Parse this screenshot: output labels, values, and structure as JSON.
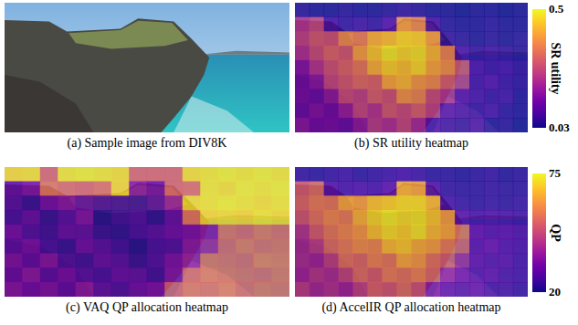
{
  "image": {
    "caption": "(a) Sample image from DIV8K"
  },
  "chart_data": [
    {
      "type": "heatmap",
      "title": "(b) SR utility heatmap",
      "tick_labels": false,
      "cells": [
        [
          0.05,
          0.04,
          0.04,
          0.05,
          0.04,
          0.04,
          0.05,
          0.06,
          0.05,
          0.04,
          0.04,
          0.03,
          0.04,
          0.04,
          0.03,
          0.04
        ],
        [
          0.22,
          0.25,
          0.08,
          0.06,
          0.07,
          0.06,
          0.09,
          0.38,
          0.35,
          0.08,
          0.05,
          0.04,
          0.04,
          0.05,
          0.04,
          0.04
        ],
        [
          0.24,
          0.28,
          0.27,
          0.36,
          0.33,
          0.4,
          0.42,
          0.45,
          0.44,
          0.38,
          0.06,
          0.05,
          0.04,
          0.05,
          0.04,
          0.05
        ],
        [
          0.21,
          0.26,
          0.3,
          0.28,
          0.39,
          0.44,
          0.48,
          0.46,
          0.47,
          0.42,
          0.35,
          0.08,
          0.06,
          0.07,
          0.06,
          0.05
        ],
        [
          0.15,
          0.22,
          0.27,
          0.3,
          0.33,
          0.41,
          0.45,
          0.43,
          0.46,
          0.4,
          0.37,
          0.28,
          0.1,
          0.08,
          0.09,
          0.07
        ],
        [
          0.13,
          0.16,
          0.25,
          0.28,
          0.31,
          0.3,
          0.4,
          0.42,
          0.38,
          0.36,
          0.29,
          0.24,
          0.09,
          0.11,
          0.08,
          0.07
        ],
        [
          0.14,
          0.12,
          0.17,
          0.26,
          0.24,
          0.29,
          0.27,
          0.37,
          0.35,
          0.26,
          0.22,
          0.12,
          0.1,
          0.08,
          0.09,
          0.06
        ],
        [
          0.12,
          0.15,
          0.13,
          0.18,
          0.25,
          0.22,
          0.28,
          0.26,
          0.29,
          0.24,
          0.11,
          0.09,
          0.08,
          0.1,
          0.07,
          0.06
        ],
        [
          0.16,
          0.13,
          0.14,
          0.12,
          0.17,
          0.23,
          0.21,
          0.25,
          0.2,
          0.1,
          0.08,
          0.07,
          0.09,
          0.06,
          0.07,
          0.05
        ]
      ]
    },
    {
      "type": "heatmap",
      "title": "(c) VAQ QP allocation heatmap",
      "tick_labels": false,
      "cells": [
        [
          70,
          71,
          52,
          72,
          73,
          72,
          71,
          52,
          52,
          52,
          71,
          72,
          73,
          72,
          73,
          72
        ],
        [
          30,
          34,
          55,
          53,
          52,
          54,
          70,
          36,
          32,
          52,
          53,
          72,
          71,
          73,
          72,
          73
        ],
        [
          28,
          24,
          32,
          35,
          30,
          27,
          26,
          25,
          29,
          38,
          71,
          72,
          73,
          72,
          71,
          72
        ],
        [
          26,
          30,
          24,
          28,
          34,
          22,
          25,
          27,
          23,
          30,
          55,
          70,
          71,
          70,
          72,
          71
        ],
        [
          32,
          27,
          25,
          30,
          29,
          24,
          23,
          26,
          28,
          31,
          33,
          36,
          54,
          52,
          55,
          53
        ],
        [
          29,
          33,
          26,
          24,
          31,
          28,
          25,
          22,
          26,
          27,
          35,
          40,
          52,
          55,
          53,
          54
        ],
        [
          34,
          30,
          35,
          27,
          25,
          30,
          28,
          24,
          27,
          33,
          38,
          54,
          53,
          52,
          56,
          55
        ],
        [
          31,
          36,
          29,
          33,
          28,
          26,
          30,
          29,
          25,
          34,
          52,
          55,
          54,
          53,
          52,
          54
        ],
        [
          35,
          32,
          34,
          30,
          36,
          29,
          27,
          31,
          33,
          50,
          54,
          53,
          55,
          52,
          54,
          53
        ]
      ]
    },
    {
      "type": "heatmap",
      "title": "(d) AccelIR QP allocation heatmap",
      "tick_labels": false,
      "cells": [
        [
          24,
          23,
          24,
          25,
          23,
          24,
          25,
          26,
          25,
          23,
          23,
          22,
          23,
          24,
          22,
          23
        ],
        [
          50,
          53,
          28,
          26,
          27,
          26,
          29,
          64,
          62,
          28,
          24,
          23,
          23,
          24,
          23,
          23
        ],
        [
          52,
          56,
          55,
          63,
          61,
          66,
          68,
          70,
          70,
          65,
          26,
          24,
          23,
          24,
          23,
          24
        ],
        [
          49,
          54,
          58,
          56,
          65,
          70,
          73,
          71,
          72,
          68,
          62,
          28,
          26,
          27,
          26,
          25
        ],
        [
          42,
          50,
          55,
          58,
          61,
          67,
          71,
          69,
          72,
          66,
          63,
          55,
          32,
          30,
          31,
          29
        ],
        [
          40,
          44,
          53,
          56,
          59,
          58,
          66,
          68,
          64,
          62,
          56,
          51,
          31,
          33,
          30,
          29
        ],
        [
          41,
          39,
          45,
          54,
          52,
          57,
          55,
          63,
          61,
          54,
          50,
          40,
          32,
          30,
          31,
          28
        ],
        [
          39,
          43,
          41,
          46,
          53,
          50,
          56,
          54,
          57,
          52,
          38,
          33,
          30,
          32,
          29,
          28
        ],
        [
          44,
          40,
          42,
          39,
          45,
          51,
          49,
          53,
          48,
          36,
          31,
          29,
          31,
          28,
          29,
          27
        ]
      ]
    }
  ],
  "colorbars": [
    {
      "label": "SR utility",
      "range": [
        0.03,
        0.5
      ],
      "ticks": [
        0.03,
        0.5
      ]
    },
    {
      "label": "QP",
      "range": [
        20,
        75
      ],
      "ticks": [
        20,
        75
      ]
    }
  ]
}
